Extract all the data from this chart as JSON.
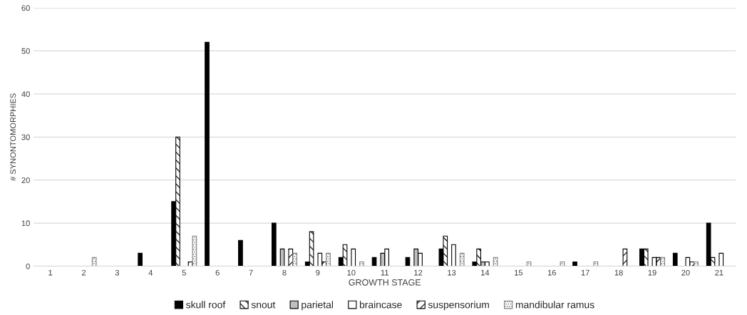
{
  "chart_data": {
    "type": "bar",
    "xlabel": "GROWTH STAGE",
    "ylabel": "# SYNONTOMORPHIES",
    "categories": [
      "1",
      "2",
      "3",
      "4",
      "5",
      "6",
      "7",
      "8",
      "9",
      "10",
      "11",
      "12",
      "13",
      "14",
      "15",
      "16",
      "17",
      "18",
      "19",
      "20",
      "21"
    ],
    "series": [
      {
        "name": "skull roof",
        "color": "#000000",
        "values": [
          0,
          0,
          0,
          3,
          15,
          52,
          6,
          10,
          1,
          2,
          2,
          2,
          4,
          1,
          0,
          0,
          1,
          0,
          4,
          3,
          10
        ]
      },
      {
        "name": "snout",
        "color": "#000000",
        "values": [
          0,
          0,
          0,
          0,
          30,
          0,
          0,
          0,
          8,
          5,
          0,
          0,
          7,
          4,
          0,
          0,
          0,
          0,
          4,
          0,
          2
        ]
      },
      {
        "name": "parietal",
        "color": "#bfbfbf",
        "values": [
          0,
          0,
          0,
          0,
          0,
          0,
          0,
          4,
          0,
          0,
          3,
          4,
          0,
          1,
          0,
          0,
          0,
          0,
          0,
          0,
          0
        ]
      },
      {
        "name": "braincase",
        "color": "#ffffff",
        "values": [
          0,
          0,
          0,
          0,
          0,
          0,
          0,
          0,
          3,
          4,
          4,
          3,
          5,
          1,
          0,
          0,
          0,
          0,
          2,
          2,
          3
        ]
      },
      {
        "name": "suspensorium",
        "color": "#000000",
        "values": [
          0,
          0,
          0,
          0,
          1,
          0,
          0,
          4,
          1,
          0,
          0,
          0,
          0,
          0,
          0,
          0,
          0,
          4,
          2,
          1,
          0
        ]
      },
      {
        "name": "mandibular ramus",
        "color": "#808080",
        "values": [
          0,
          2,
          0,
          0,
          7,
          0,
          0,
          3,
          3,
          1,
          0,
          0,
          3,
          2,
          1,
          1,
          1,
          0,
          2,
          1,
          0
        ]
      }
    ],
    "ylim": [
      0,
      60
    ],
    "yticks": [
      0,
      10,
      20,
      30,
      40,
      50,
      60
    ],
    "grid": "y",
    "legend": "bottom"
  }
}
